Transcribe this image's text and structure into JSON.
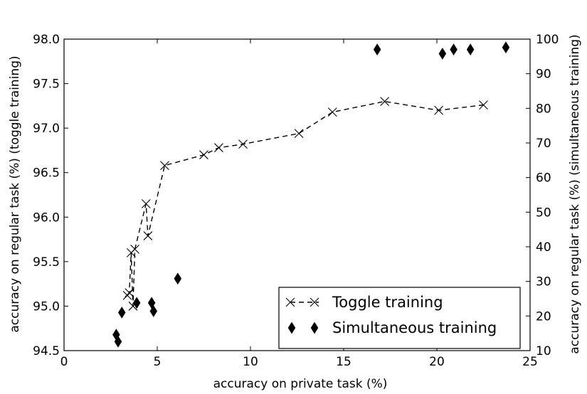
{
  "chart_data": {
    "type": "scatter",
    "xlabel": "accuracy on private task (%)",
    "ylabel_left": "accuracy on regular task  (%) (toggle training)",
    "ylabel_right": "accuracy on regular task  (%) (simultaneous training)",
    "xlim": [
      0,
      25
    ],
    "ylim_left": [
      94.5,
      98.0
    ],
    "ylim_right": [
      10,
      100
    ],
    "x_ticks": [
      "0",
      "5",
      "10",
      "15",
      "20",
      "25"
    ],
    "y_left_ticks": [
      "94.5",
      "95.0",
      "95.5",
      "96.0",
      "96.5",
      "97.0",
      "97.5",
      "98.0"
    ],
    "y_right_ticks": [
      "10",
      "20",
      "30",
      "40",
      "50",
      "60",
      "70",
      "80",
      "90",
      "100"
    ],
    "grid": false,
    "legend_position": "lower-right",
    "series": [
      {
        "name": "Toggle training",
        "marker": "x",
        "line": "dashed",
        "axis": "left",
        "color": "#000000",
        "points": [
          [
            3.4,
            95.12
          ],
          [
            3.5,
            95.15
          ],
          [
            3.6,
            95.6
          ],
          [
            3.7,
            95.0
          ],
          [
            3.8,
            95.64
          ],
          [
            4.4,
            96.15
          ],
          [
            4.5,
            95.79
          ],
          [
            5.4,
            96.58
          ],
          [
            7.5,
            96.7
          ],
          [
            8.3,
            96.78
          ],
          [
            9.6,
            96.82
          ],
          [
            12.6,
            96.94
          ],
          [
            14.4,
            97.18
          ],
          [
            17.2,
            97.3
          ],
          [
            20.1,
            97.2
          ],
          [
            22.5,
            97.26
          ]
        ]
      },
      {
        "name": "Simultaneous training",
        "marker": "diamond",
        "line": "none",
        "axis": "right",
        "color": "#000000",
        "points": [
          [
            2.8,
            14.6
          ],
          [
            2.9,
            12.6
          ],
          [
            3.1,
            21.0
          ],
          [
            3.9,
            23.8
          ],
          [
            4.7,
            23.8
          ],
          [
            4.8,
            21.4
          ],
          [
            6.1,
            30.8
          ],
          [
            16.8,
            97.0
          ],
          [
            20.3,
            95.8
          ],
          [
            20.9,
            97.0
          ],
          [
            21.8,
            97.0
          ],
          [
            23.7,
            97.6
          ]
        ]
      }
    ]
  }
}
